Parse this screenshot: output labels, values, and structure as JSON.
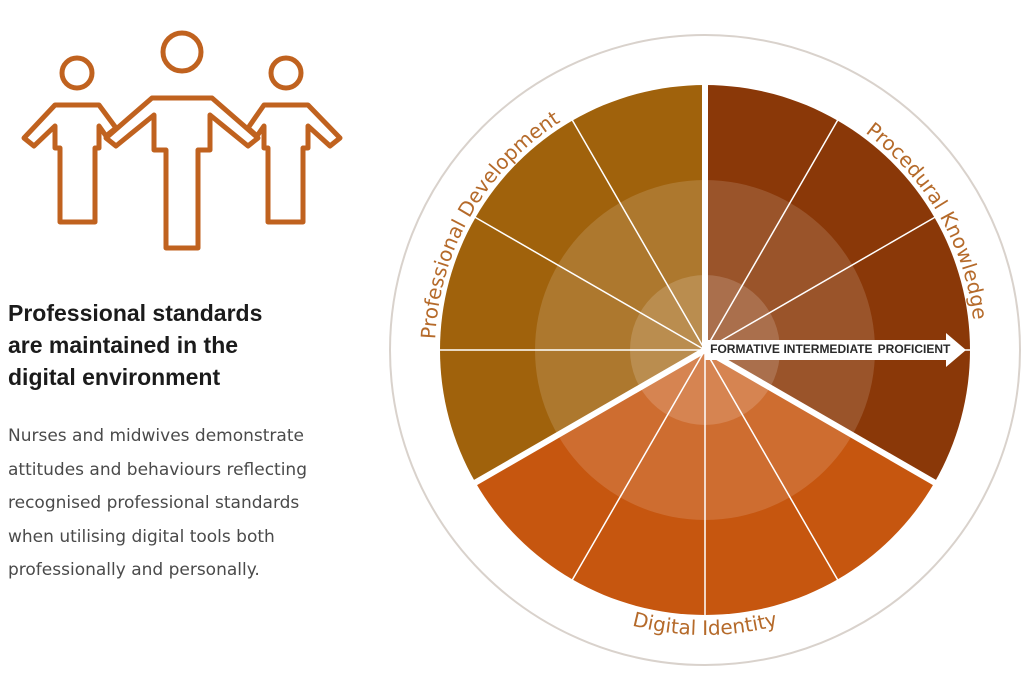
{
  "header": {
    "title_lines": [
      "Professional standards",
      "are maintained in the",
      "digital environment"
    ]
  },
  "body": {
    "lines": [
      "Nurses and midwives demonstrate",
      "attitudes and behaviours reflecting",
      "recognised professional standards",
      "when utilising digital tools both",
      "professionally and personally."
    ]
  },
  "wheel": {
    "segments": [
      {
        "label": "Professional Development"
      },
      {
        "label": "Procedural Knowledge"
      },
      {
        "label": "Digital Identity"
      }
    ],
    "arrow_labels": [
      "FORMATIVE",
      "INTERMEDIATE",
      "PROFICIENT"
    ]
  }
}
